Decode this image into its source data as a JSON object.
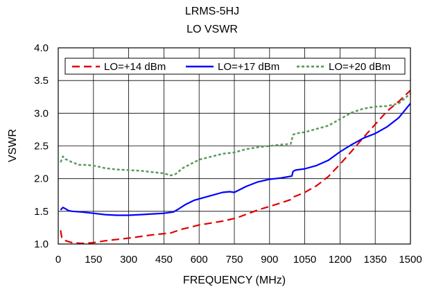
{
  "chart_data": {
    "type": "line",
    "title": "LRMS-5HJ",
    "subtitle": "LO VSWR",
    "xlabel": "FREQUENCY (MHz)",
    "ylabel": "VSWR",
    "xlim": [
      0,
      1500
    ],
    "ylim": [
      1.0,
      4.0
    ],
    "x_ticks": [
      0,
      150,
      300,
      450,
      600,
      750,
      900,
      1050,
      1200,
      1350,
      1500
    ],
    "y_ticks": [
      1.0,
      1.5,
      2.0,
      2.5,
      3.0,
      3.5,
      4.0
    ],
    "x_tick_labels": [
      "0",
      "150",
      "300",
      "450",
      "600",
      "750",
      "900",
      "1050",
      "1200",
      "1350",
      "1500"
    ],
    "y_tick_labels": [
      "1.0",
      "1.5",
      "2.0",
      "2.5",
      "3.0",
      "3.5",
      "4.0"
    ],
    "grid": true,
    "legend_position": "top",
    "series": [
      {
        "name": "LO=+14 dBm",
        "color": "#e00000",
        "style": "dashed",
        "x": [
          10,
          15,
          25,
          40,
          60,
          100,
          150,
          200,
          300,
          400,
          480,
          520,
          600,
          700,
          760,
          850,
          950,
          990,
          1000,
          1010,
          1050,
          1100,
          1150,
          1200,
          1250,
          1300,
          1350,
          1400,
          1450,
          1500
        ],
        "y": [
          1.21,
          1.1,
          1.06,
          1.04,
          1.02,
          1.01,
          1.02,
          1.05,
          1.09,
          1.14,
          1.17,
          1.22,
          1.29,
          1.35,
          1.4,
          1.52,
          1.63,
          1.68,
          1.72,
          1.73,
          1.79,
          1.89,
          2.03,
          2.22,
          2.42,
          2.63,
          2.83,
          3.03,
          3.18,
          3.35
        ]
      },
      {
        "name": "LO=+17 dBm",
        "color": "#0000ff",
        "style": "solid",
        "x": [
          10,
          20,
          30,
          45,
          60,
          100,
          150,
          200,
          250,
          300,
          350,
          400,
          450,
          490,
          510,
          540,
          580,
          650,
          700,
          730,
          750,
          800,
          850,
          900,
          950,
          995,
          1000,
          1010,
          1050,
          1100,
          1150,
          1200,
          1250,
          1300,
          1350,
          1400,
          1450,
          1500
        ],
        "y": [
          1.52,
          1.56,
          1.54,
          1.51,
          1.5,
          1.49,
          1.47,
          1.45,
          1.44,
          1.44,
          1.45,
          1.46,
          1.47,
          1.49,
          1.53,
          1.6,
          1.67,
          1.74,
          1.79,
          1.8,
          1.79,
          1.88,
          1.95,
          1.99,
          2.01,
          2.04,
          2.11,
          2.13,
          2.15,
          2.2,
          2.28,
          2.41,
          2.52,
          2.62,
          2.69,
          2.79,
          2.93,
          3.15
        ]
      },
      {
        "name": "LO=+20 dBm",
        "color": "#5a9a5a",
        "style": "dotted",
        "x": [
          10,
          20,
          30,
          60,
          90,
          120,
          150,
          200,
          250,
          300,
          350,
          400,
          450,
          480,
          500,
          530,
          600,
          700,
          750,
          800,
          850,
          900,
          950,
          990,
          1000,
          1010,
          1050,
          1100,
          1150,
          1200,
          1250,
          1300,
          1350,
          1400,
          1450,
          1500
        ],
        "y": [
          2.25,
          2.34,
          2.3,
          2.25,
          2.21,
          2.21,
          2.2,
          2.16,
          2.14,
          2.13,
          2.12,
          2.1,
          2.08,
          2.05,
          2.07,
          2.16,
          2.29,
          2.38,
          2.4,
          2.45,
          2.48,
          2.5,
          2.52,
          2.53,
          2.67,
          2.69,
          2.71,
          2.76,
          2.81,
          2.91,
          3.01,
          3.07,
          3.1,
          3.11,
          3.15,
          3.3
        ]
      }
    ]
  }
}
